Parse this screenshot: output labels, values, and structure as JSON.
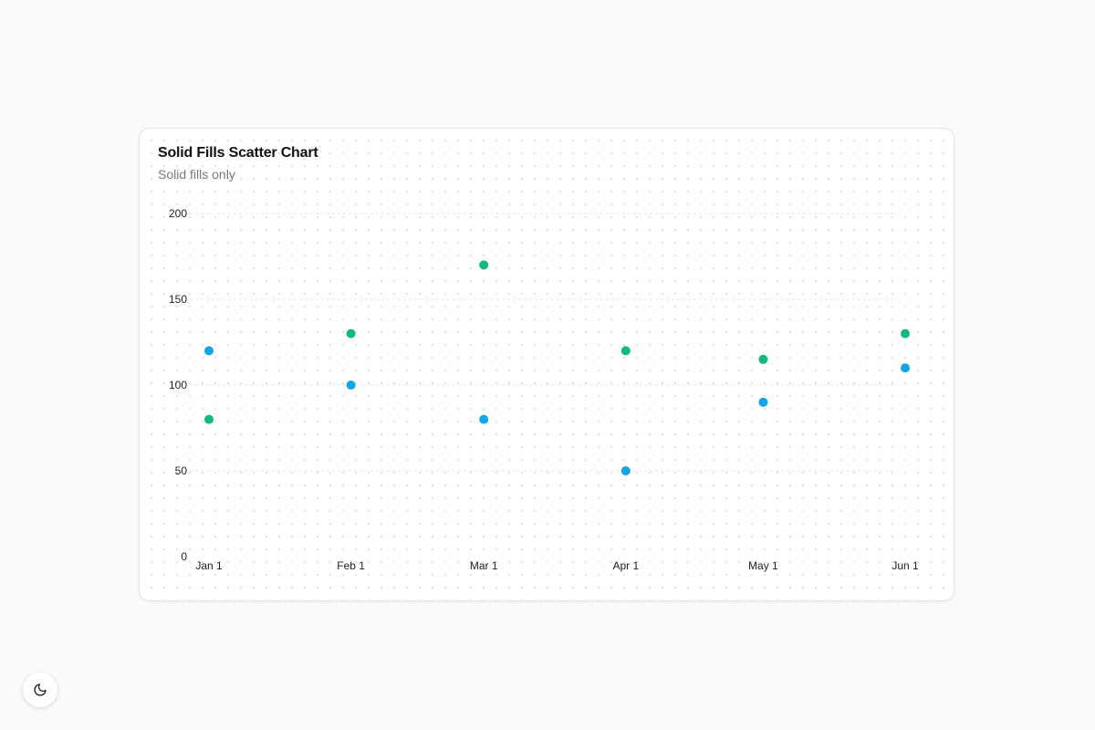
{
  "card": {
    "title": "Solid Fills Scatter Chart",
    "subtitle": "Solid fills only"
  },
  "theme_toggle": {
    "icon": "moon-icon"
  },
  "chart_data": {
    "type": "scatter",
    "title": "Solid Fills Scatter Chart",
    "subtitle": "Solid fills only",
    "x": [
      "Jan 1",
      "Feb 1",
      "Mar 1",
      "Apr 1",
      "May 1",
      "Jun 1"
    ],
    "x_dates": [
      "2024-01-01",
      "2024-02-01",
      "2024-03-01",
      "2024-04-01",
      "2024-05-01",
      "2024-06-01"
    ],
    "series": [
      {
        "color": "#0ea5e9",
        "values": [
          120,
          100,
          80,
          50,
          90,
          110
        ]
      },
      {
        "color": "#10b981",
        "values": [
          80,
          130,
          170,
          120,
          115,
          130
        ]
      }
    ],
    "ylim": [
      0,
      200
    ],
    "yticks": [
      0,
      50,
      100,
      150,
      200
    ],
    "grid": true,
    "legend": "none"
  }
}
